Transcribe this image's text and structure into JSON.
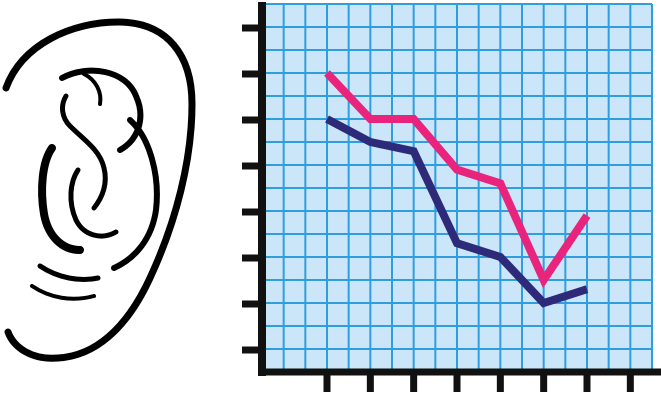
{
  "illustration": {
    "icon": "ear-icon",
    "stroke_color": "#000000"
  },
  "chart_data": {
    "type": "line",
    "title": "",
    "xlabel": "",
    "ylabel": "",
    "x": [
      1,
      2,
      3,
      4,
      5,
      6,
      7,
      8
    ],
    "xlim": [
      -0.5,
      8.5
    ],
    "ylim": [
      0,
      8
    ],
    "x_tick_count": 8,
    "y_tick_count": 8,
    "grid": true,
    "legend": "none",
    "background_color": "#cbe6f8",
    "grid_color": "#2f9ee0",
    "axis_color": "#111111",
    "series": [
      {
        "values": [
          6.5,
          5.5,
          5.5,
          4.4,
          4.1,
          2.0,
          3.4
        ],
        "x": [
          1,
          2,
          3,
          4,
          5,
          6,
          7
        ],
        "color": "#e8247c"
      },
      {
        "values": [
          5.5,
          5.0,
          4.8,
          2.8,
          2.5,
          1.5,
          1.8
        ],
        "x": [
          1,
          2,
          3,
          4,
          5,
          6,
          7
        ],
        "color": "#2e2a7a"
      }
    ]
  }
}
